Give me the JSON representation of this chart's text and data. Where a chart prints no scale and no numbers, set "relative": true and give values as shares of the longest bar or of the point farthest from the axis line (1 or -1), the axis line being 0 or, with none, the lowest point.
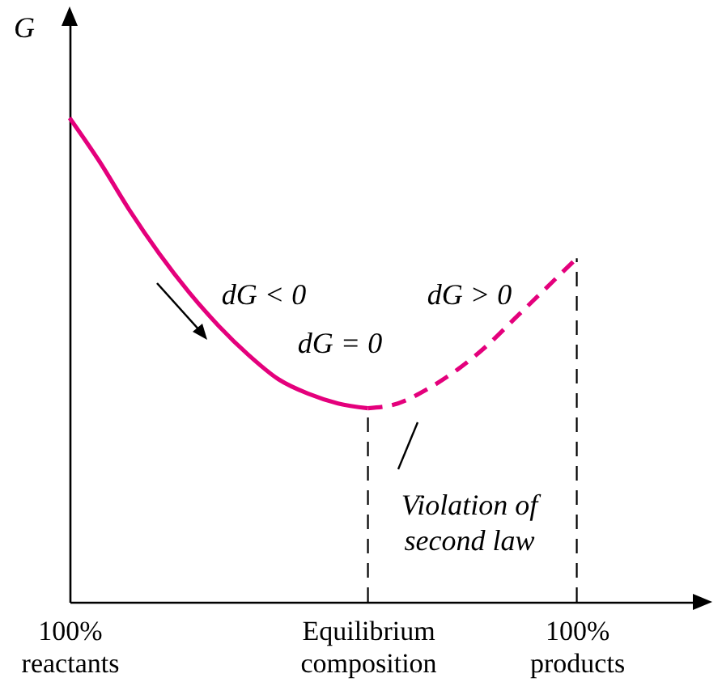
{
  "chart_data": {
    "type": "line",
    "relative": true,
    "ylabel": "G",
    "categories": [
      "100%\nreactants",
      null,
      null,
      null,
      null,
      null,
      null,
      null,
      null,
      null,
      "Equilibrium\ncomposition",
      null,
      null,
      null,
      null,
      null,
      null,
      "100%\nproducts",
      null,
      null,
      null,
      null
    ],
    "series": [
      {
        "color": "#e4007c",
        "line_style": "solid",
        "values": [
          1.0,
          0.91,
          0.81,
          0.72,
          0.64,
          0.57,
          0.51,
          0.46,
          0.43,
          0.41,
          0.4,
          null,
          null,
          null,
          null,
          null,
          null,
          null,
          null,
          null,
          null,
          null
        ]
      },
      {
        "color": "#e4007c",
        "line_style": "dashed",
        "values": [
          null,
          null,
          null,
          null,
          null,
          null,
          null,
          null,
          null,
          null,
          0.4,
          0.41,
          0.44,
          0.48,
          0.53,
          0.59,
          0.65,
          0.71,
          null,
          null,
          null,
          null
        ]
      }
    ],
    "ref_lines": [
      {
        "axis": "x",
        "value": "Equilibrium\ncomposition",
        "line_style": "dashed",
        "color": "#000000"
      },
      {
        "axis": "x",
        "value": "100%\nproducts",
        "line_style": "dashed",
        "color": "#000000"
      }
    ],
    "annotations": [
      "dG < 0",
      "dG = 0",
      "dG > 0",
      "Violation of\nsecond law"
    ],
    "grid": false
  }
}
